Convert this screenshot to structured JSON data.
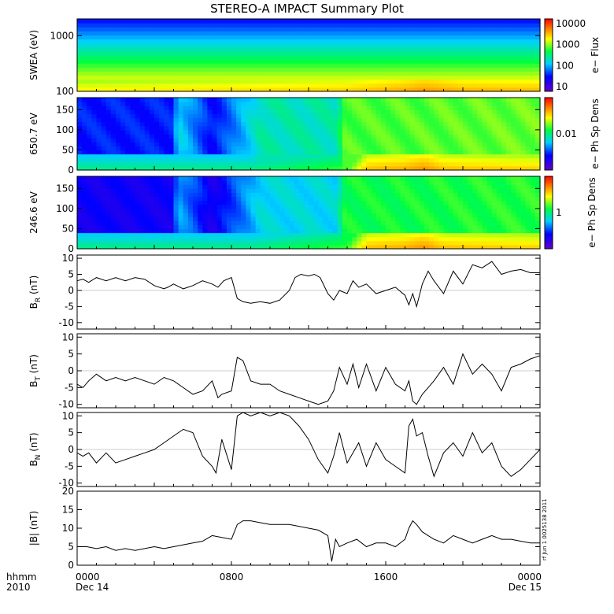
{
  "chart_data": {
    "title": "STEREO-A IMPACT Summary Plot",
    "x_range_hours": [
      0,
      24
    ],
    "x_ticks": [
      {
        "hour": 0,
        "label": "0000",
        "sub": "Dec 14"
      },
      {
        "hour": 8,
        "label": "0800",
        "sub": ""
      },
      {
        "hour": 16,
        "label": "1600",
        "sub": ""
      },
      {
        "hour": 24,
        "label": "0000",
        "sub": "Dec 15"
      }
    ],
    "x_corner_label": "hhmm",
    "x_corner_sub": "2010",
    "side_stamp": "rf Jun 1 0025138 2011",
    "panels": [
      {
        "type": "heatmap",
        "ylabel": "SWEA (eV)",
        "log_y": true,
        "ylim": [
          100,
          2000
        ],
        "y_ticks": [
          "100",
          "1000"
        ],
        "colorbar_label": "e− Flux",
        "colorbar_ticks": [
          "10",
          "100",
          "1000",
          "10000"
        ]
      },
      {
        "type": "heatmap",
        "ylabel": "650.7 eV",
        "ylim": [
          0,
          180
        ],
        "y_ticks": [
          "0",
          "50",
          "100",
          "150"
        ],
        "colorbar_label": "e− Ph Sp Dens",
        "colorbar_ticks": [
          "0.01"
        ]
      },
      {
        "type": "heatmap",
        "ylabel": "246.6 eV",
        "ylim": [
          0,
          180
        ],
        "y_ticks": [
          "0",
          "50",
          "100",
          "150"
        ],
        "colorbar_label": "e− Ph Sp Dens",
        "colorbar_ticks": [
          "1"
        ]
      },
      {
        "type": "line",
        "ylabel": "B",
        "ylabel_sub": "R",
        "ylabel_unit": " (nT)",
        "ylim": [
          -12,
          11
        ],
        "y_ticks": [
          -10,
          -5,
          0,
          5,
          10
        ],
        "series": {
          "hours": [
            0,
            0.3,
            0.6,
            1,
            1.5,
            2,
            2.5,
            3,
            3.5,
            4,
            4.5,
            4.7,
            5,
            5.5,
            6,
            6.5,
            7,
            7.3,
            7.6,
            8,
            8.3,
            8.6,
            9,
            9.5,
            10,
            10.5,
            11,
            11.3,
            11.6,
            12,
            12.3,
            12.6,
            13,
            13.3,
            13.6,
            14,
            14.3,
            14.6,
            15,
            15.5,
            16,
            16.5,
            17,
            17.2,
            17.4,
            17.6,
            17.9,
            18.2,
            18.5,
            19,
            19.5,
            20,
            20.5,
            21,
            21.5,
            22,
            22.5,
            23,
            23.5,
            24
          ],
          "values": [
            3,
            3.5,
            2.5,
            4,
            3,
            4,
            3,
            4,
            3.5,
            1.5,
            0.5,
            1,
            2,
            0.5,
            1.5,
            3,
            2,
            1,
            3,
            4,
            -2.5,
            -3.5,
            -4,
            -3.5,
            -4,
            -3,
            0,
            4,
            5,
            4.5,
            5,
            4,
            -1,
            -3,
            0,
            -1,
            3,
            1,
            2,
            -1,
            0,
            1,
            -1.5,
            -4.5,
            -1,
            -5,
            2,
            6,
            3,
            -1,
            6,
            2,
            8,
            7,
            9,
            5,
            6,
            6.5,
            5.5,
            5.5
          ]
        }
      },
      {
        "type": "line",
        "ylabel": "B",
        "ylabel_sub": "T",
        "ylabel_unit": " (nT)",
        "ylim": [
          -11,
          11
        ],
        "y_ticks": [
          -10,
          -5,
          0,
          5,
          10
        ],
        "series": {
          "hours": [
            0,
            0.3,
            0.6,
            1,
            1.5,
            2,
            2.5,
            3,
            3.5,
            4,
            4.5,
            5,
            5.5,
            6,
            6.5,
            7,
            7.3,
            7.5,
            8,
            8.3,
            8.6,
            9,
            9.5,
            10,
            10.5,
            11,
            11.5,
            12,
            12.5,
            13,
            13.3,
            13.6,
            14,
            14.3,
            14.6,
            15,
            15.5,
            16,
            16.5,
            17,
            17.2,
            17.4,
            17.6,
            17.9,
            18.2,
            18.5,
            19,
            19.5,
            20,
            20.5,
            21,
            21.5,
            22,
            22.5,
            23,
            23.5,
            24
          ],
          "values": [
            -4,
            -5,
            -3,
            -1,
            -3,
            -2,
            -3,
            -2,
            -3,
            -4,
            -2,
            -3,
            -5,
            -7,
            -6,
            -3,
            -8,
            -7,
            -6,
            4,
            3,
            -3,
            -4,
            -4,
            -6,
            -7,
            -8,
            -9,
            -10,
            -9,
            -6,
            1,
            -4,
            2,
            -5,
            2,
            -6,
            1,
            -4,
            -6,
            -3,
            -9,
            -10,
            -7,
            -5,
            -3,
            1,
            -4,
            5,
            -1,
            2,
            -1,
            -6,
            1,
            2,
            3.5,
            4.5
          ]
        }
      },
      {
        "type": "line",
        "ylabel": "B",
        "ylabel_sub": "N",
        "ylabel_unit": " (nT)",
        "ylim": [
          -11,
          11
        ],
        "y_ticks": [
          -10,
          -5,
          0,
          5,
          10
        ],
        "series": {
          "hours": [
            0,
            0.3,
            0.6,
            1,
            1.5,
            2,
            2.5,
            3,
            3.5,
            4,
            4.5,
            5,
            5.5,
            6,
            6.5,
            7,
            7.2,
            7.5,
            8,
            8.3,
            8.6,
            9,
            9.5,
            10,
            10.5,
            11,
            11.5,
            12,
            12.5,
            13,
            13.3,
            13.6,
            14,
            14.3,
            14.6,
            15,
            15.5,
            16,
            16.5,
            17,
            17.2,
            17.4,
            17.6,
            17.9,
            18.2,
            18.5,
            19,
            19.5,
            20,
            20.5,
            21,
            21.5,
            22,
            22.5,
            23,
            23.5,
            24
          ],
          "values": [
            -1,
            -2,
            -1,
            -4,
            -1,
            -4,
            -3,
            -2,
            -1,
            0,
            2,
            4,
            6,
            5,
            -2,
            -5,
            -7,
            3,
            -6,
            10,
            11,
            10,
            11,
            10,
            11,
            10,
            7,
            3,
            -3,
            -7,
            -2,
            5,
            -4,
            -1,
            2,
            -5,
            2,
            -3,
            -5,
            -7,
            7,
            9,
            4,
            5,
            -2,
            -8,
            -1,
            2,
            -2,
            5,
            -1,
            2,
            -5,
            -8,
            -6,
            -3,
            0
          ]
        }
      },
      {
        "type": "line",
        "ylabel": "|B| (nT)",
        "ylim": [
          0,
          20
        ],
        "y_ticks": [
          0,
          5,
          10,
          15,
          20
        ],
        "series": {
          "hours": [
            0,
            0.5,
            1,
            1.5,
            2,
            2.5,
            3,
            3.5,
            4,
            4.5,
            5,
            5.5,
            6,
            6.5,
            7,
            7.5,
            8,
            8.3,
            8.6,
            9,
            9.5,
            10,
            10.5,
            11,
            11.5,
            12,
            12.5,
            13,
            13.2,
            13.4,
            13.6,
            14,
            14.5,
            15,
            15.5,
            16,
            16.5,
            17,
            17.2,
            17.4,
            17.6,
            17.9,
            18.2,
            18.5,
            19,
            19.5,
            20,
            20.5,
            21,
            21.5,
            22,
            22.5,
            23,
            23.5,
            24
          ],
          "values": [
            5,
            5,
            4.5,
            5,
            4,
            4.5,
            4,
            4.5,
            5,
            4.5,
            5,
            5.5,
            6,
            6.5,
            8,
            7.5,
            7,
            11,
            12,
            12,
            11.5,
            11,
            11,
            11,
            10.5,
            10,
            9.5,
            8,
            1,
            7,
            5,
            6,
            7,
            5,
            6,
            6,
            5,
            7,
            10,
            12,
            11,
            9,
            8,
            7,
            6,
            8,
            7,
            6,
            7,
            8,
            7,
            7,
            6.5,
            6,
            6
          ]
        }
      }
    ]
  }
}
